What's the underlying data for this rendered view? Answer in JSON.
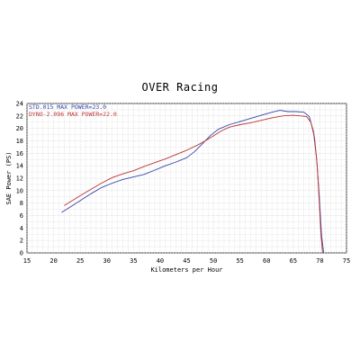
{
  "chart_data": {
    "type": "line",
    "title": "OVER Racing",
    "xlabel": "Kilometers per Hour",
    "ylabel": "SAE Power (PS)",
    "xlim": [
      15,
      75
    ],
    "ylim": [
      0,
      24
    ],
    "x_ticks": [
      15,
      20,
      25,
      30,
      35,
      40,
      45,
      50,
      55,
      60,
      65,
      70,
      75
    ],
    "y_ticks": [
      0,
      2,
      4,
      6,
      8,
      10,
      12,
      14,
      16,
      18,
      20,
      22,
      24
    ],
    "grid": true,
    "legend_position": "top-left",
    "series": [
      {
        "name": "STD.015  MAX POWER=23.0",
        "color": "#3344aa",
        "x": [
          21.5,
          23,
          25,
          27,
          29,
          31,
          33,
          35,
          37,
          39,
          41,
          43,
          45,
          46.5,
          48,
          49.5,
          51,
          53,
          55,
          57,
          59,
          61,
          62.5,
          64,
          65.5,
          67,
          68,
          68.8,
          69.4,
          69.9,
          70.3,
          70.7
        ],
        "y": [
          6.5,
          7.3,
          8.4,
          9.5,
          10.5,
          11.2,
          11.8,
          12.2,
          12.6,
          13.3,
          14.0,
          14.6,
          15.3,
          16.3,
          17.6,
          18.9,
          19.9,
          20.6,
          21.1,
          21.6,
          22.1,
          22.6,
          22.9,
          22.7,
          22.7,
          22.6,
          21.9,
          19.5,
          15.0,
          9.0,
          3.0,
          0.0
        ]
      },
      {
        "name": "DYNO-2.096  MAX POWER=22.0",
        "color": "#bb3333",
        "x": [
          22,
          23.5,
          25,
          27,
          29,
          31,
          33,
          35,
          37,
          39,
          41,
          43,
          45,
          47,
          48.5,
          50,
          51.5,
          53,
          55,
          57,
          59,
          61,
          63,
          65,
          66.5,
          67.5,
          68.3,
          69,
          69.5,
          69.9,
          70.2,
          70.5
        ],
        "y": [
          7.6,
          8.4,
          9.2,
          10.2,
          11.2,
          12.1,
          12.7,
          13.2,
          13.9,
          14.5,
          15.1,
          15.8,
          16.5,
          17.3,
          18.0,
          18.8,
          19.6,
          20.2,
          20.6,
          20.9,
          21.3,
          21.7,
          22.0,
          22.1,
          22.0,
          21.9,
          21.0,
          18.5,
          14.0,
          8.0,
          3.0,
          0.0
        ]
      }
    ]
  }
}
